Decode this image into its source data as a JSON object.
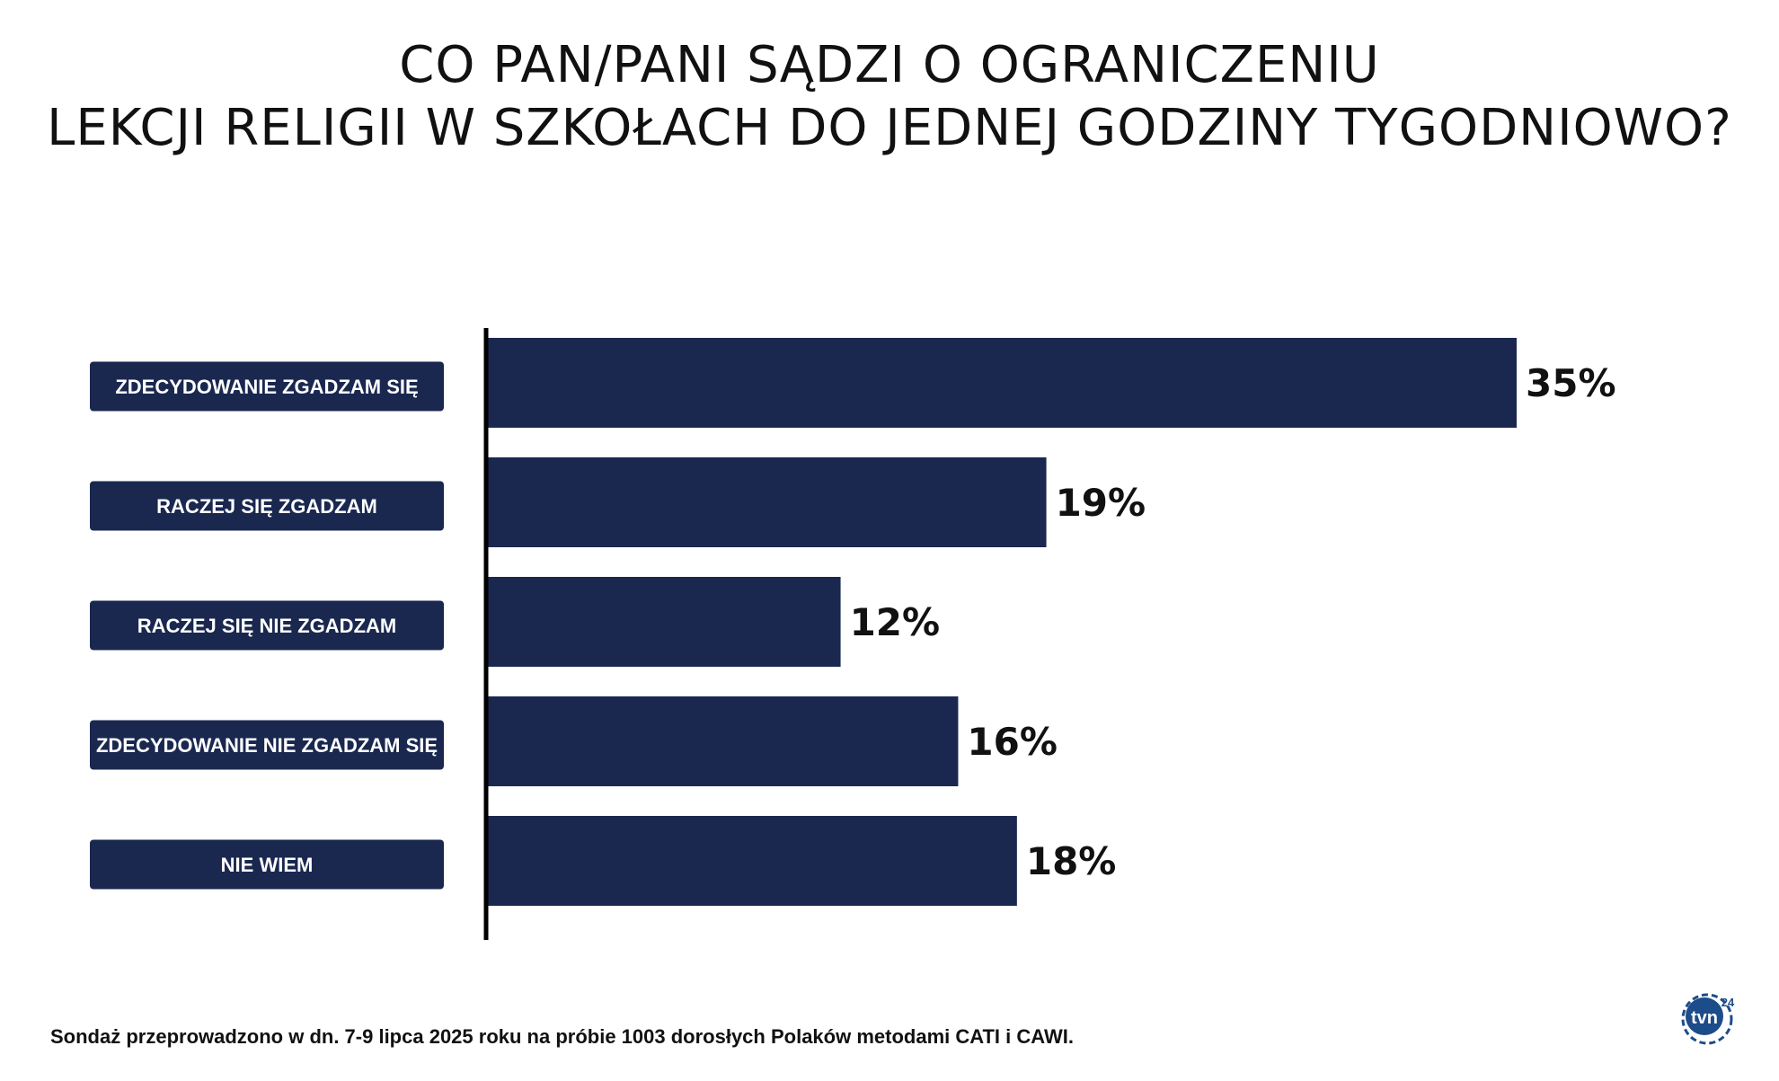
{
  "title": {
    "line1": "CO PAN/PANI SĄDZI O OGRANICZENIU",
    "line2": "LEKCJI RELIGII W SZKOŁACH DO JEDNEJ GODZINY TYGODNIOWO?"
  },
  "chart_data": {
    "type": "bar",
    "orientation": "horizontal",
    "categories": [
      "ZDECYDOWANIE ZGADZAM SIĘ",
      "RACZEJ SIĘ ZGADZAM",
      "RACZEJ SIĘ NIE ZGADZAM",
      "ZDECYDOWANIE NIE ZGADZAM SIĘ",
      "NIE WIEM"
    ],
    "values": [
      35,
      19,
      12,
      16,
      18
    ],
    "value_labels": [
      "35%",
      "19%",
      "12%",
      "16%",
      "18%"
    ],
    "unit": "%",
    "xlim": [
      0,
      35
    ],
    "grid": false,
    "legend": "none",
    "bar_color": "#1a2850",
    "label_box_color": "#1a2850"
  },
  "footnote": "Sondaż przeprowadzono w dn. 7-9 lipca 2025 roku na próbie 1003 dorosłych Polaków metodami CATI i CAWI.",
  "logo": {
    "icon": "tvn24-logo",
    "text_main": "tvn",
    "text_sub": "24",
    "color": "#1c4c8a"
  }
}
